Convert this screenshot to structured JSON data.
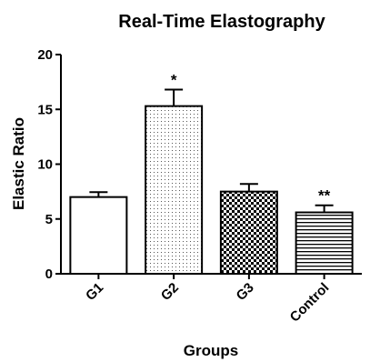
{
  "chart_data": {
    "type": "bar",
    "title": "Real-Time Elastography",
    "xlabel": "Groups",
    "ylabel": "Elastic Ratio",
    "categories": [
      "G1",
      "G2",
      "G3",
      "Control"
    ],
    "values": [
      7.0,
      15.3,
      7.5,
      5.6
    ],
    "error_upper": [
      0.45,
      1.5,
      0.7,
      0.65
    ],
    "annotations": [
      "",
      "*",
      "",
      "**"
    ],
    "fill_patterns": [
      "none",
      "dots",
      "checker",
      "hlines"
    ],
    "ylim": [
      0,
      20
    ],
    "yticks": [
      0,
      5,
      10,
      15,
      20
    ],
    "grid": false,
    "bar_color": "#000000",
    "background": "#ffffff"
  }
}
